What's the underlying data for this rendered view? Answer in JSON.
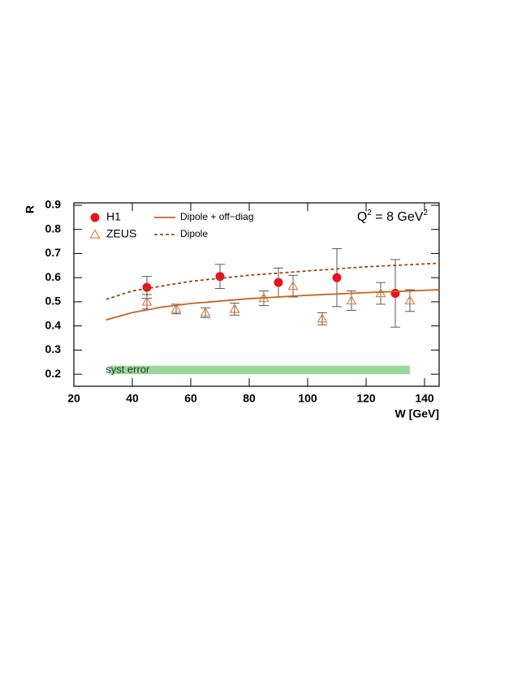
{
  "chart_data": {
    "type": "scatter",
    "y_label": "R",
    "x_label": "W [GeV]",
    "annotation": [
      "Q",
      "2",
      " = 8 GeV",
      "2"
    ],
    "xlim": [
      20,
      145
    ],
    "ylim": [
      0.15,
      0.91
    ],
    "xticks": [
      20,
      40,
      60,
      80,
      100,
      120,
      140
    ],
    "yticks": [
      0.2,
      0.3,
      0.4,
      0.5,
      0.6,
      0.7,
      0.8,
      0.9
    ],
    "band": {
      "label": "syst error",
      "x": [
        32,
        135
      ],
      "y": [
        0.2,
        0.235
      ],
      "color": "#7fd07f"
    },
    "series": [
      {
        "name": "H1",
        "kind": "points",
        "marker": "circle",
        "color": "#e8141c",
        "x": [
          45,
          70,
          90,
          110,
          130
        ],
        "values": [
          0.56,
          0.605,
          0.58,
          0.6,
          0.535
        ],
        "errors": [
          0.045,
          0.05,
          0.06,
          0.12,
          0.14
        ]
      },
      {
        "name": "ZEUS",
        "kind": "points",
        "marker": "triangle",
        "color": "#e08040",
        "x": [
          45,
          55,
          65,
          75,
          85,
          95,
          105,
          115,
          125,
          135
        ],
        "values": [
          0.5,
          0.47,
          0.455,
          0.47,
          0.515,
          0.565,
          0.43,
          0.505,
          0.535,
          0.505
        ],
        "errors": [
          0.03,
          0.02,
          0.02,
          0.025,
          0.03,
          0.045,
          0.025,
          0.04,
          0.045,
          0.045
        ]
      },
      {
        "name": "Dipole + off−diag",
        "kind": "line",
        "dash": false,
        "color": "#c8641e",
        "x": [
          31,
          40,
          50,
          60,
          80,
          100,
          120,
          145
        ],
        "values": [
          0.425,
          0.455,
          0.478,
          0.493,
          0.513,
          0.527,
          0.538,
          0.55
        ]
      },
      {
        "name": "Dipole",
        "kind": "line",
        "dash": true,
        "color": "#9a4a14",
        "x": [
          31,
          40,
          60,
          80,
          100,
          120,
          145
        ],
        "values": [
          0.51,
          0.545,
          0.585,
          0.61,
          0.628,
          0.645,
          0.66
        ]
      }
    ]
  }
}
